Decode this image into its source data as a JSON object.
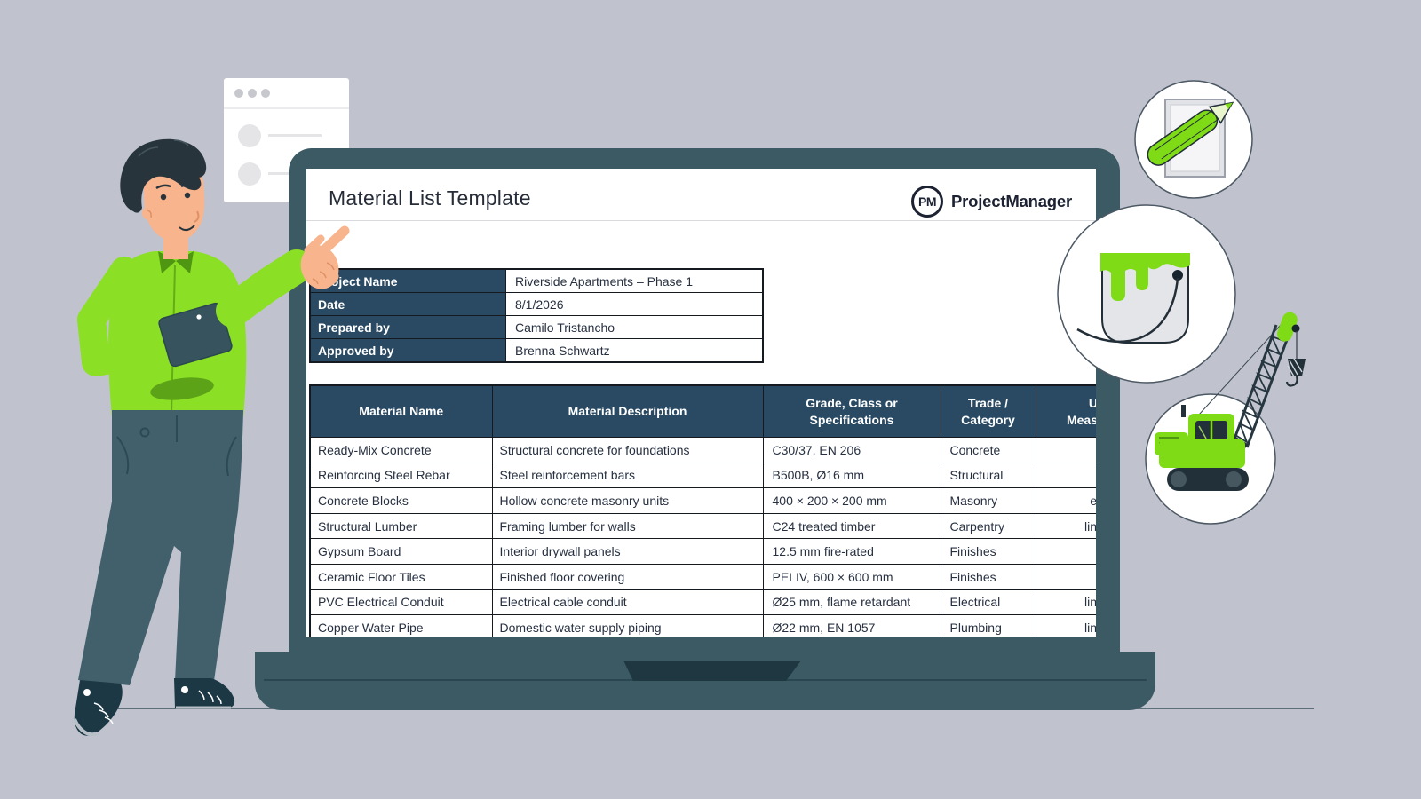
{
  "colors": {
    "background": "#c0c3cd",
    "laptop_body": "#3c5a64",
    "laptop_notch": "#1e3741",
    "table_header_bg": "#2a4a63",
    "table_border": "#141a20",
    "accent_green": "#7edb16",
    "shirt_green": "#8bdf24",
    "ink": "#1c2232"
  },
  "screen": {
    "title": "Material List Template",
    "logo": {
      "monogram": "PM",
      "brand": "ProjectManager"
    },
    "info_rows": [
      {
        "label": "Project Name",
        "value": "Riverside Apartments – Phase 1"
      },
      {
        "label": "Date",
        "value": "8/1/2026"
      },
      {
        "label": "Prepared by",
        "value": "Camilo Tristancho"
      },
      {
        "label": "Approved by",
        "value": "Brenna Schwartz"
      }
    ],
    "material_table": {
      "headers": [
        {
          "lines": [
            "Material Name"
          ]
        },
        {
          "lines": [
            "Material Description"
          ]
        },
        {
          "lines": [
            "Grade, Class or",
            "Specifications"
          ]
        },
        {
          "lines": [
            "Trade /",
            "Category"
          ]
        },
        {
          "lines": [
            "U",
            "Meas"
          ]
        }
      ],
      "rows": [
        [
          "Ready-Mix Concrete",
          "Structural concrete for foundations",
          "C30/37, EN 206",
          "Concrete",
          ""
        ],
        [
          "Reinforcing Steel Rebar",
          "Steel reinforcement bars",
          "B500B, Ø16 mm",
          "Structural",
          ""
        ],
        [
          "Concrete Blocks",
          "Hollow concrete masonry units",
          "400 × 200 × 200 mm",
          "Masonry",
          "e"
        ],
        [
          "Structural Lumber",
          "Framing lumber for walls",
          "C24 treated timber",
          "Carpentry",
          "lin"
        ],
        [
          "Gypsum Board",
          "Interior drywall panels",
          "12.5 mm fire-rated",
          "Finishes",
          ""
        ],
        [
          "Ceramic Floor Tiles",
          "Finished floor covering",
          "PEI IV, 600 × 600 mm",
          "Finishes",
          ""
        ],
        [
          "PVC Electrical Conduit",
          "Electrical cable conduit",
          "Ø25 mm, flame retardant",
          "Electrical",
          "lin"
        ],
        [
          "Copper Water Pipe",
          "Domestic water supply piping",
          "Ø22 mm, EN 1057",
          "Plumbing",
          "lin"
        ]
      ]
    }
  },
  "illustrations": {
    "presenter": "man-with-tablet-pointing-at-screen",
    "document_card": "checklist-card",
    "badges": [
      "pencil-and-paper",
      "paint-bucket",
      "crawler-crane"
    ]
  }
}
